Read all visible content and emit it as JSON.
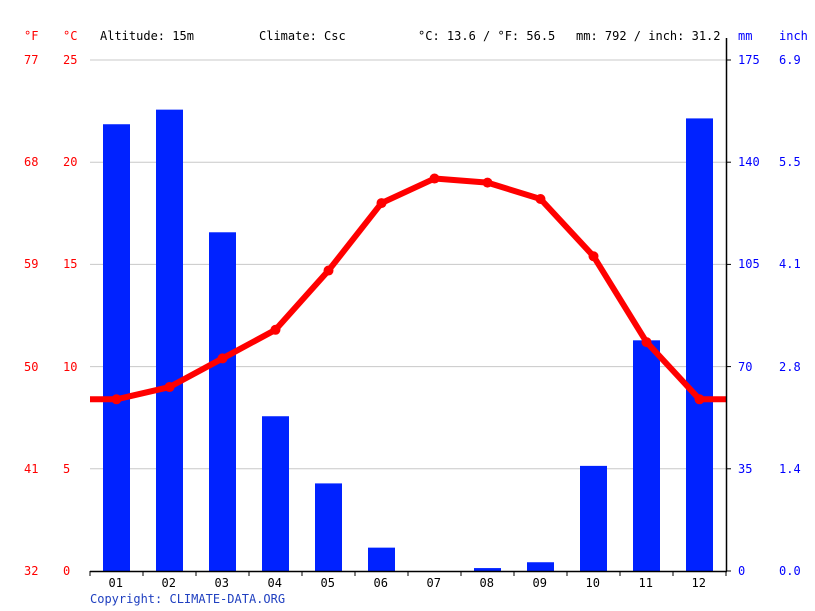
{
  "header": {
    "unit_f": "°F",
    "unit_c": "°C",
    "altitude": "Altitude: 15m",
    "climate": "Climate: Csc",
    "avg_temp": "°C: 13.6 / °F: 56.5",
    "total_precip": "mm: 792 / inch: 31.2",
    "unit_mm": "mm",
    "unit_inch": "inch"
  },
  "axes": {
    "f_ticks": [
      "77",
      "68",
      "59",
      "50",
      "41",
      "32"
    ],
    "c_ticks": [
      "25",
      "20",
      "15",
      "10",
      "5",
      "0"
    ],
    "mm_ticks": [
      "175",
      "140",
      "105",
      "70",
      "35",
      "0"
    ],
    "inch_ticks": [
      "6.9",
      "5.5",
      "4.1",
      "2.8",
      "1.4",
      "0.0"
    ]
  },
  "footer": {
    "copyright": "Copyright: CLIMATE-DATA.ORG"
  },
  "colors": {
    "temperature": "#ff0000",
    "precipitation": "#0022ff",
    "grid": "#c8c8c8"
  },
  "chart_data": {
    "type": "bar+line",
    "title": "",
    "categories": [
      "01",
      "02",
      "03",
      "04",
      "05",
      "06",
      "07",
      "08",
      "09",
      "10",
      "11",
      "12"
    ],
    "series": [
      {
        "name": "Precipitation (mm)",
        "type": "bar",
        "axis": "right",
        "values": [
          153,
          158,
          116,
          53,
          30,
          8,
          0,
          1,
          3,
          36,
          79,
          155
        ]
      },
      {
        "name": "Temperature (°C)",
        "type": "line",
        "axis": "left",
        "values": [
          8.4,
          9.0,
          10.4,
          11.8,
          14.7,
          18.0,
          19.2,
          19.0,
          18.2,
          15.4,
          11.2,
          8.4
        ]
      }
    ],
    "xlabel": "",
    "ylabel_left": "°C / °F",
    "ylabel_right": "mm / inch",
    "ylim_c": [
      0,
      25
    ],
    "ylim_f": [
      32,
      77
    ],
    "ylim_mm": [
      0,
      175
    ],
    "ylim_inch": [
      0,
      6.9
    ],
    "grid": true,
    "annotations": [
      "Altitude: 15m",
      "Climate: Csc",
      "°C: 13.6 / °F: 56.5",
      "mm: 792 / inch: 31.2"
    ]
  }
}
